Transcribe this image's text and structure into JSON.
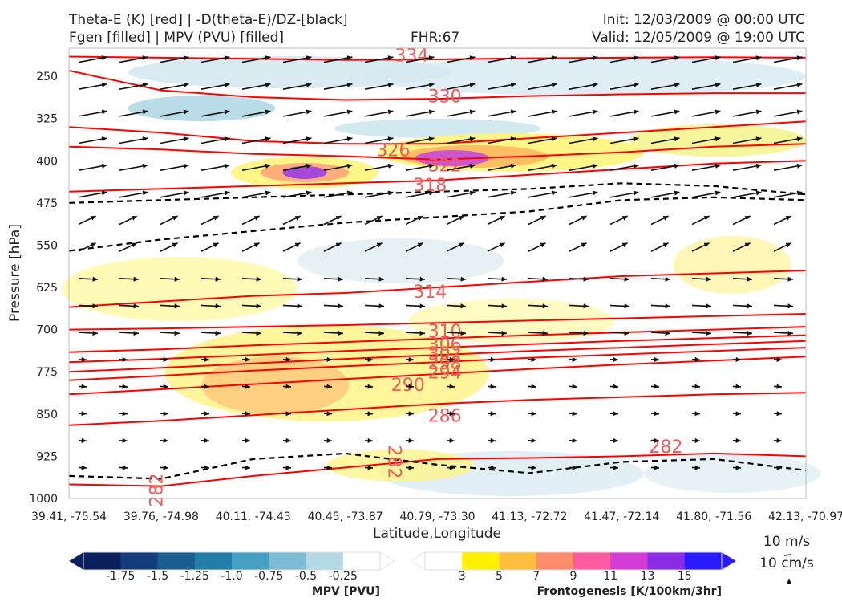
{
  "header": {
    "title_line1": "Theta-E (K) [red] | -D(theta-E)/DZ-[black]",
    "title_line2": "Fgen [filled] | MPV (PVU) [filled]",
    "fhr": "FHR:67",
    "init": "Init: 12/03/2009 @ 00:00 UTC",
    "valid": "Valid: 12/05/2009 @ 19:00 UTC"
  },
  "colors": {
    "theta_e": "#ff0000",
    "theta_e_label": "#f05a5a",
    "stability": "#000000",
    "vector": "#111111",
    "mpv_contour": "#9aaed0"
  },
  "chart_data": {
    "type": "cross-section",
    "xlabel": "Latitude,Longitude",
    "ylabel": "Pressure [hPa]",
    "x_ticks": [
      "39.41, -75.54",
      "39.76, -74.98",
      "40.11, -74.43",
      "40.45, -73.87",
      "40.79, -73.30",
      "41.13, -72.72",
      "41.47, -72.14",
      "41.80, -71.56",
      "42.13, -70.97"
    ],
    "y_ticks": [
      250,
      325,
      400,
      475,
      550,
      625,
      700,
      775,
      850,
      925,
      1000
    ],
    "ylim": [
      1000,
      200
    ],
    "y_inverted": true,
    "theta_e_contours": [
      {
        "value": "334",
        "pressure": [
          215,
          217,
          219,
          221,
          220,
          218,
          217,
          216,
          217
        ]
      },
      {
        "value": "330",
        "pressure": [
          240,
          275,
          287,
          292,
          290,
          285,
          282,
          280,
          280
        ]
      },
      {
        "value": "326",
        "pressure": [
          340,
          350,
          365,
          370,
          370,
          360,
          350,
          340,
          330
        ]
      },
      {
        "value": "322",
        "pressure": [
          375,
          380,
          388,
          392,
          398,
          392,
          385,
          375,
          370
        ]
      },
      {
        "value": "318",
        "pressure": [
          455,
          450,
          445,
          440,
          435,
          425,
          415,
          405,
          400
        ]
      },
      {
        "value": "314",
        "pressure": [
          660,
          650,
          640,
          635,
          625,
          615,
          605,
          600,
          595
        ]
      },
      {
        "value": "310",
        "pressure": [
          700,
          698,
          695,
          692,
          688,
          684,
          680,
          676,
          672
        ]
      },
      {
        "value": "306",
        "pressure": [
          740,
          735,
          728,
          722,
          716,
          710,
          705,
          700,
          695
        ]
      },
      {
        "value": "302",
        "pressure": [
          758,
          752,
          745,
          738,
          732,
          726,
          720,
          715,
          710
        ]
      },
      {
        "value": "298",
        "pressure": [
          775,
          768,
          760,
          752,
          745,
          738,
          732,
          726,
          720
        ]
      },
      {
        "value": "294",
        "pressure": [
          790,
          782,
          773,
          765,
          758,
          750,
          744,
          738,
          732
        ]
      },
      {
        "value": "290",
        "pressure": [
          815,
          806,
          797,
          788,
          779,
          770,
          762,
          755,
          748
        ]
      },
      {
        "value": "286",
        "pressure": [
          870,
          862,
          852,
          842,
          832,
          825,
          820,
          815,
          812
        ]
      },
      {
        "value": "282",
        "pressure": [
          975,
          978,
          960,
          945,
          930,
          928,
          925,
          920,
          925
        ]
      }
    ],
    "inline_labels": [
      {
        "text": "334",
        "x_frac": 0.465,
        "p": 215
      },
      {
        "text": "330",
        "x_frac": 0.51,
        "p": 288
      },
      {
        "text": "326",
        "x_frac": 0.44,
        "p": 383
      },
      {
        "text": "322",
        "x_frac": 0.51,
        "p": 410
      },
      {
        "text": "318",
        "x_frac": 0.49,
        "p": 445
      },
      {
        "text": "314",
        "x_frac": 0.49,
        "p": 635
      },
      {
        "text": "310",
        "x_frac": 0.51,
        "p": 705
      },
      {
        "text": "306",
        "x_frac": 0.51,
        "p": 728
      },
      {
        "text": "302",
        "x_frac": 0.51,
        "p": 745
      },
      {
        "text": "298",
        "x_frac": 0.51,
        "p": 762
      },
      {
        "text": "294",
        "x_frac": 0.51,
        "p": 778
      },
      {
        "text": "290",
        "x_frac": 0.46,
        "p": 800
      },
      {
        "text": "286",
        "x_frac": 0.51,
        "p": 855
      },
      {
        "text": "282",
        "x_frac": 0.81,
        "p": 910
      },
      {
        "text": "282",
        "x_frac": 0.44,
        "p": 935,
        "rotate": 90
      },
      {
        "text": "282",
        "x_frac": 0.12,
        "p": 985,
        "rotate": -90
      }
    ],
    "mpv_colorbar": {
      "title": "MPV [PVU]",
      "labels": [
        "-1.75",
        "-1.5",
        "-1.25",
        "-1.0",
        "-0.75",
        "-0.5",
        "-0.25"
      ],
      "colors": [
        "#0a1f5c",
        "#123d7a",
        "#1a5d90",
        "#217ea8",
        "#45a0c4",
        "#7dbcd5",
        "#b4d9e6",
        "#ffffff"
      ]
    },
    "fgen_colorbar": {
      "title": "Frontogenesis [K/100km/3hr]",
      "labels": [
        "3",
        "5",
        "7",
        "9",
        "11",
        "13",
        "15"
      ],
      "colors": [
        "#ffffff",
        "#fff200",
        "#ffbe3c",
        "#ff8c6a",
        "#ff5aa0",
        "#d43cd6",
        "#8a2ce6",
        "#2a1aff"
      ]
    },
    "vector_key": {
      "label1": "10 m/s",
      "label2": "10 cm/s"
    }
  }
}
